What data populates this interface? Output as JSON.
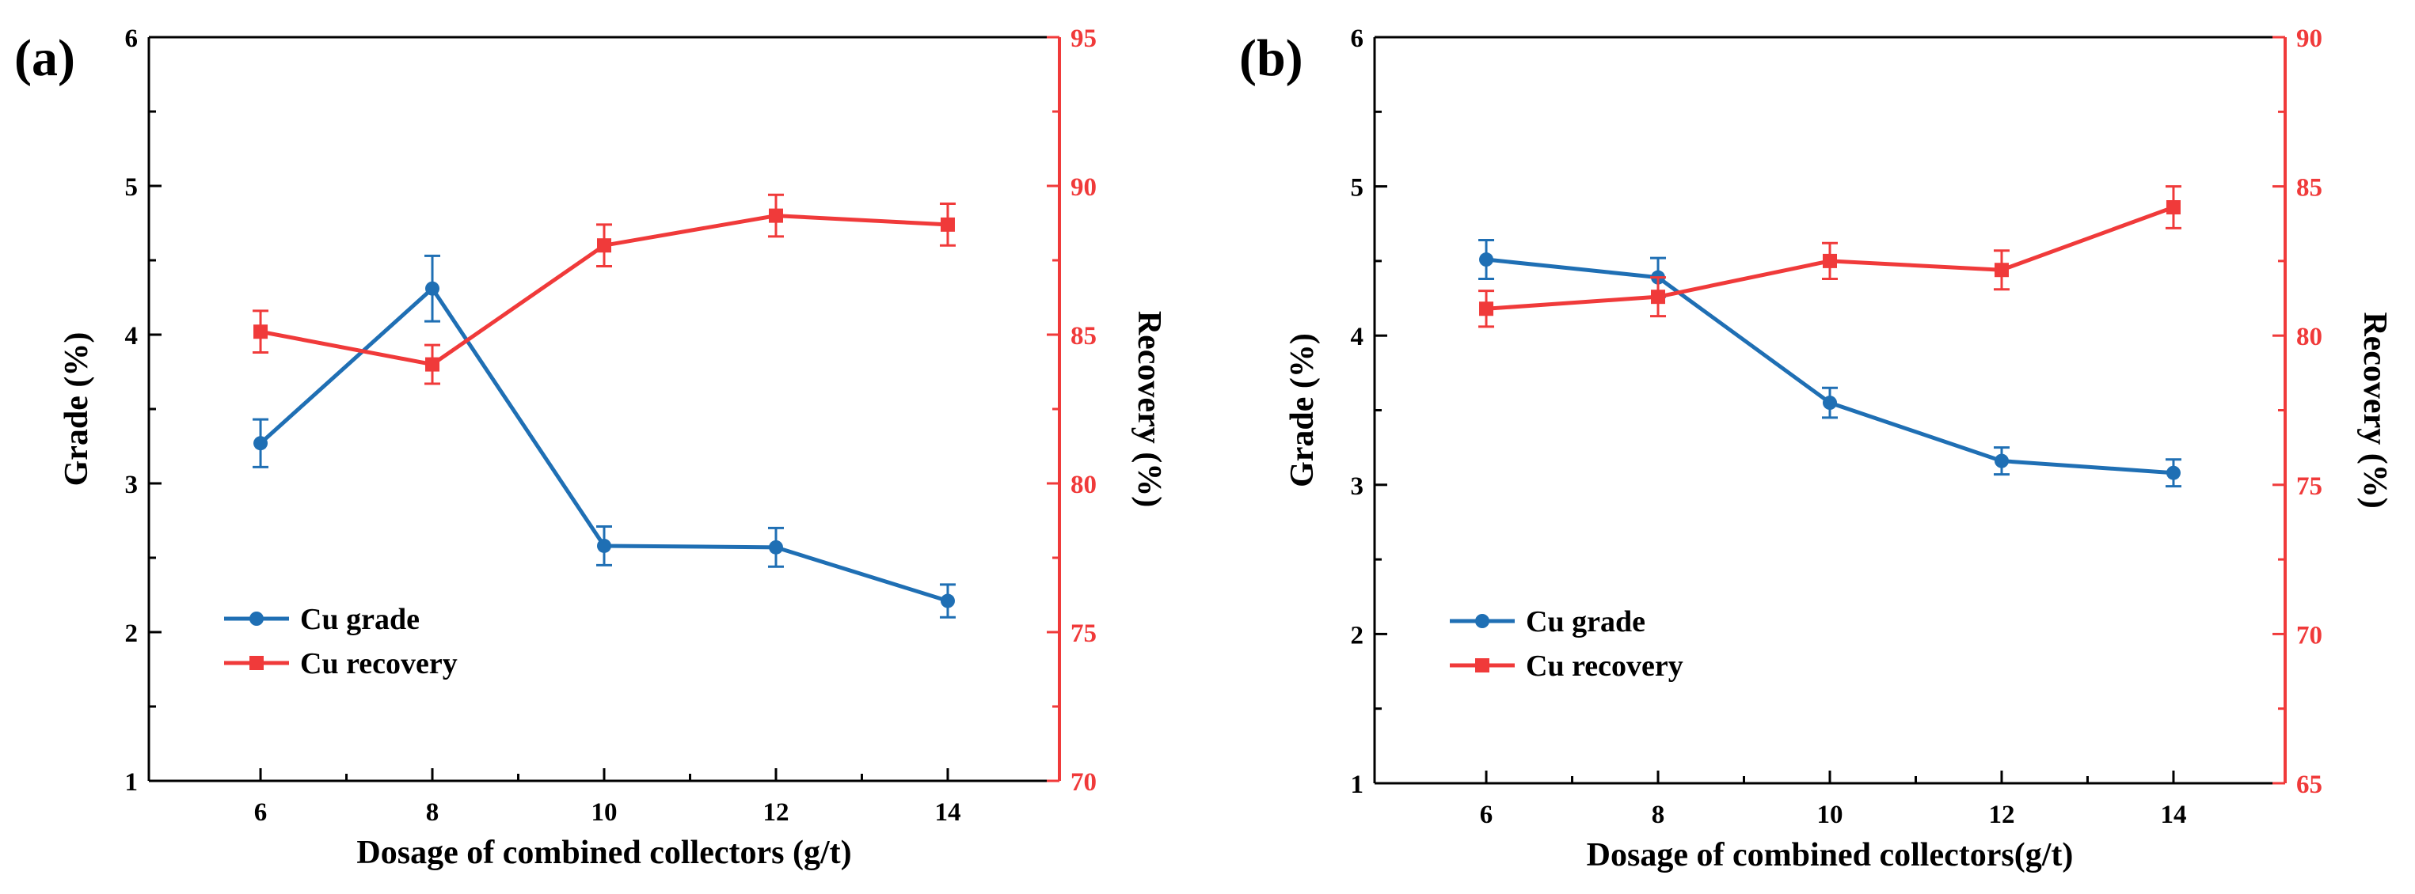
{
  "colors": {
    "grade": "#1f6fb4",
    "recovery": "#f03a3a",
    "axis": "#000000"
  },
  "chart_data": [
    {
      "type": "line",
      "panel_label": "(a)",
      "xlabel": "Dosage of combined collectors (g/t)",
      "ylabel": "Grade (%)",
      "y2label": "Recovery (%)",
      "x": [
        6,
        8,
        10,
        12,
        14
      ],
      "x_ticks": [
        "6",
        "8",
        "10",
        "12",
        "14"
      ],
      "xlim": [
        4.7,
        15.3
      ],
      "ylim": [
        1,
        6
      ],
      "y_ticks": [
        "1",
        "2",
        "3",
        "4",
        "5",
        "6"
      ],
      "y2lim": [
        70,
        95
      ],
      "y2_ticks": [
        "70",
        "75",
        "80",
        "85",
        "90",
        "95"
      ],
      "series": [
        {
          "name": "Cu grade",
          "axis": "left",
          "marker": "circle",
          "values": [
            3.27,
            4.31,
            2.58,
            2.57,
            2.21
          ],
          "errors": [
            0.16,
            0.22,
            0.13,
            0.13,
            0.11
          ]
        },
        {
          "name": "Cu recovery",
          "axis": "right",
          "marker": "square",
          "values": [
            85.1,
            84.0,
            88.0,
            89.0,
            88.7
          ],
          "errors": [
            0.7,
            0.65,
            0.7,
            0.7,
            0.7
          ]
        }
      ]
    },
    {
      "type": "line",
      "panel_label": "(b)",
      "xlabel": "Dosage of combined collectors(g/t)",
      "ylabel": "Grade (%)",
      "y2label": "Recovery (%)",
      "x": [
        6,
        8,
        10,
        12,
        14
      ],
      "x_ticks": [
        "6",
        "8",
        "10",
        "12",
        "14"
      ],
      "xlim": [
        4.7,
        15.3
      ],
      "ylim": [
        1,
        6
      ],
      "y_ticks": [
        "1",
        "2",
        "3",
        "4",
        "5",
        "6"
      ],
      "y2lim": [
        65,
        90
      ],
      "y2_ticks": [
        "65",
        "70",
        "75",
        "80",
        "85",
        "90"
      ],
      "series": [
        {
          "name": "Cu grade",
          "axis": "left",
          "marker": "circle",
          "values": [
            4.51,
            4.39,
            3.55,
            3.16,
            3.08
          ],
          "errors": [
            0.13,
            0.13,
            0.1,
            0.09,
            0.09
          ]
        },
        {
          "name": "Cu recovery",
          "axis": "right",
          "marker": "square",
          "values": [
            80.9,
            81.3,
            82.5,
            82.2,
            84.3
          ],
          "errors": [
            0.6,
            0.65,
            0.6,
            0.65,
            0.7
          ]
        }
      ]
    }
  ]
}
